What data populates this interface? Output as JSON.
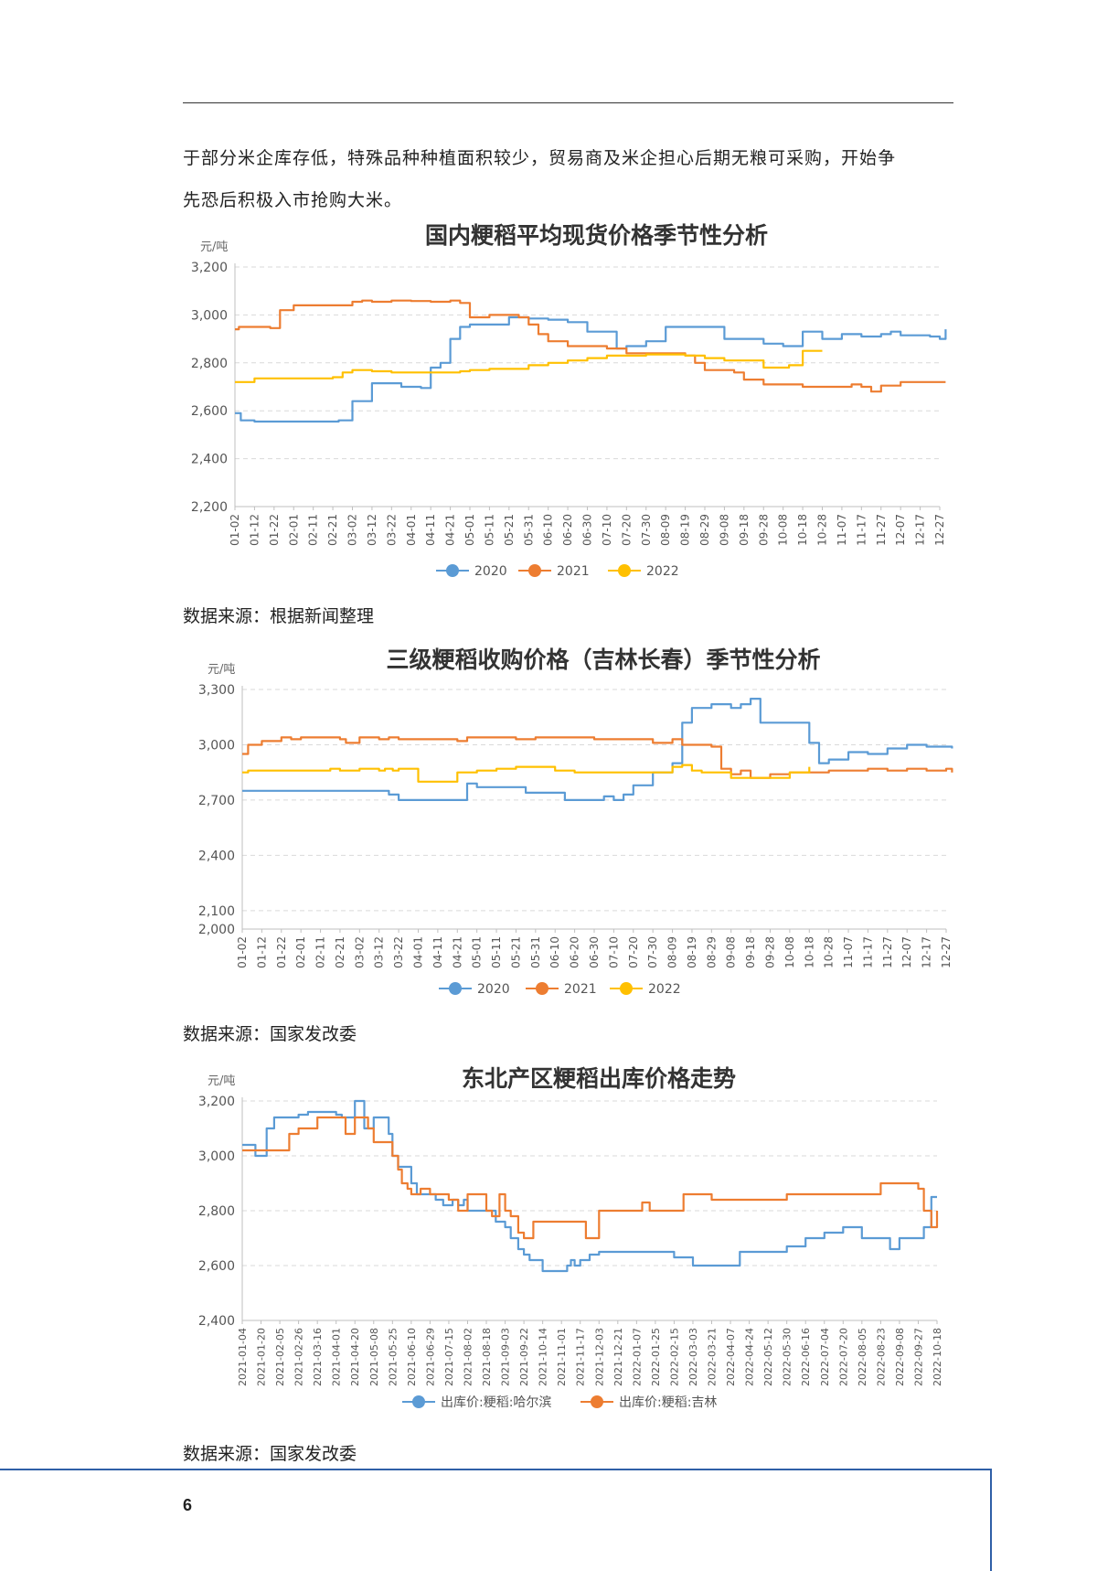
{
  "paragraph": {
    "line1": "于部分米企库存低，特殊品种种植面积较少，贸易商及米企担心后期无粮可采购，开始争",
    "line2": "先恐后积极入市抢购大米。"
  },
  "page_number": "6",
  "sources": [
    "数据来源：根据新闻整理",
    "数据来源：国家发改委",
    "数据来源：国家发改委"
  ],
  "colors": {
    "blue": "#5b9bd5",
    "orange": "#ed7d31",
    "yellow": "#ffc000"
  },
  "chart_data": [
    {
      "type": "line",
      "title": "国内粳稻平均现货价格季节性分析",
      "ylabel": "元/吨",
      "ylim": [
        2200,
        3200
      ],
      "yticks": [
        2200,
        2400,
        2600,
        2800,
        3000,
        3200
      ],
      "ytick_labels": [
        "2,200",
        "2,400",
        "2,600",
        "2,800",
        "3,000",
        "3,200"
      ],
      "x_index_range": [
        0,
        36
      ],
      "x_tick_labels": [
        "01-02",
        "01-12",
        "01-22",
        "02-01",
        "02-11",
        "02-21",
        "03-02",
        "03-12",
        "03-22",
        "04-01",
        "04-11",
        "04-21",
        "05-01",
        "05-11",
        "05-21",
        "05-31",
        "06-10",
        "06-20",
        "06-30",
        "07-10",
        "07-20",
        "07-30",
        "08-09",
        "08-19",
        "08-29",
        "09-08",
        "09-18",
        "09-28",
        "10-08",
        "10-18",
        "10-28",
        "11-07",
        "11-17",
        "11-27",
        "12-07",
        "12-17",
        "12-27"
      ],
      "legend_position": "bottom",
      "series": [
        {
          "name": "2020",
          "color": "#5b9bd5",
          "step": true,
          "x": [
            0,
            0.3,
            1,
            5,
            5.3,
            5.7,
            6,
            6.8,
            7,
            8.2,
            8.5,
            9,
            9.5,
            9.8,
            10,
            10.5,
            11,
            11.5,
            12,
            14,
            15,
            16,
            17,
            17.5,
            18,
            19.5,
            19.7,
            20,
            21,
            22,
            23,
            24,
            25,
            26,
            27,
            27.8,
            28,
            28.5,
            29,
            29.5,
            30,
            30.5,
            31,
            32,
            33,
            33.5,
            34,
            35,
            35.5,
            36,
            36.3
          ],
          "y": [
            2590,
            2560,
            2555,
            2555,
            2560,
            2560,
            2640,
            2640,
            2715,
            2715,
            2700,
            2700,
            2695,
            2695,
            2780,
            2800,
            2900,
            2950,
            2960,
            2990,
            2985,
            2980,
            2970,
            2970,
            2930,
            2860,
            2860,
            2870,
            2890,
            2950,
            2950,
            2950,
            2900,
            2900,
            2880,
            2880,
            2870,
            2870,
            2930,
            2930,
            2900,
            2900,
            2920,
            2910,
            2920,
            2930,
            2915,
            2915,
            2910,
            2900,
            2940
          ]
        },
        {
          "name": "2021",
          "color": "#ed7d31",
          "step": true,
          "x": [
            0,
            0.2,
            1,
            1.8,
            2.3,
            3,
            5,
            6,
            6.5,
            7,
            8,
            9,
            10,
            11,
            11.5,
            12,
            13,
            14,
            14.5,
            15,
            15.5,
            16,
            17,
            19,
            20,
            21,
            22,
            22.5,
            23,
            23.5,
            24,
            25,
            25.5,
            26,
            27,
            28,
            29,
            30,
            31,
            31.5,
            32,
            32.5,
            33,
            34,
            35,
            36,
            36.3
          ],
          "y": [
            2940,
            2950,
            2950,
            2945,
            3020,
            3040,
            3040,
            3055,
            3060,
            3055,
            3060,
            3058,
            3055,
            3060,
            3050,
            2990,
            3000,
            3000,
            2990,
            2960,
            2920,
            2890,
            2870,
            2860,
            2840,
            2840,
            2840,
            2840,
            2830,
            2800,
            2770,
            2770,
            2760,
            2730,
            2710,
            2710,
            2700,
            2700,
            2700,
            2710,
            2700,
            2680,
            2705,
            2720,
            2720,
            2720,
            2720
          ]
        },
        {
          "name": "2022",
          "color": "#ffc000",
          "step": true,
          "x": [
            0,
            0.5,
            1,
            5,
            5.5,
            6,
            7,
            8,
            9,
            10,
            11,
            11.5,
            12,
            13,
            14,
            15,
            16,
            17,
            18,
            19,
            20,
            21,
            22,
            23,
            24,
            25,
            26,
            27,
            28,
            28.3,
            29,
            30
          ],
          "y": [
            2720,
            2720,
            2735,
            2740,
            2760,
            2770,
            2765,
            2760,
            2760,
            2760,
            2760,
            2765,
            2770,
            2775,
            2775,
            2790,
            2800,
            2810,
            2820,
            2830,
            2830,
            2835,
            2835,
            2830,
            2820,
            2810,
            2810,
            2780,
            2780,
            2790,
            2850,
            2850
          ]
        }
      ]
    },
    {
      "type": "line",
      "title": "三级粳稻收购价格（吉林长春）季节性分析",
      "ylabel": "元/吨",
      "ylim": [
        2000,
        3300
      ],
      "yticks": [
        2000,
        2100,
        2400,
        2700,
        3000,
        3300
      ],
      "ytick_labels": [
        "2,000",
        "2,100",
        "2,400",
        "2,700",
        "3,000",
        "3,300"
      ],
      "x_index_range": [
        0,
        36
      ],
      "x_tick_labels": [
        "01-02",
        "01-12",
        "01-22",
        "02-01",
        "02-11",
        "02-21",
        "03-02",
        "03-12",
        "03-22",
        "04-01",
        "04-11",
        "04-21",
        "05-01",
        "05-11",
        "05-21",
        "05-31",
        "06-10",
        "06-20",
        "06-30",
        "07-10",
        "07-20",
        "07-30",
        "08-09",
        "08-19",
        "08-29",
        "09-08",
        "09-18",
        "09-28",
        "10-08",
        "10-18",
        "10-28",
        "11-07",
        "11-17",
        "11-27",
        "12-07",
        "12-17",
        "12-27"
      ],
      "legend_position": "bottom",
      "series": [
        {
          "name": "2020",
          "color": "#5b9bd5",
          "step": true,
          "x": [
            0,
            7,
            7.5,
            8,
            11,
            11.5,
            12,
            14,
            14.5,
            16,
            16.5,
            18,
            18.5,
            19,
            19.5,
            20,
            21,
            22,
            22.5,
            23,
            24,
            25,
            25.5,
            26,
            26.5,
            28,
            29,
            29.5,
            30,
            31,
            32,
            33,
            34,
            35,
            36.3
          ],
          "y": [
            2750,
            2750,
            2730,
            2700,
            2700,
            2790,
            2770,
            2770,
            2740,
            2740,
            2700,
            2700,
            2720,
            2700,
            2730,
            2780,
            2850,
            2900,
            3120,
            3200,
            3220,
            3200,
            3220,
            3250,
            3120,
            3120,
            3010,
            2900,
            2920,
            2960,
            2950,
            2980,
            3000,
            2990,
            2980
          ]
        },
        {
          "name": "2021",
          "color": "#ed7d31",
          "step": true,
          "x": [
            0,
            0.3,
            1,
            2,
            2.5,
            3,
            4,
            5,
            5.3,
            6,
            7,
            7.5,
            8,
            11,
            11.5,
            14,
            15,
            18,
            21,
            22,
            22.5,
            24,
            24.5,
            25,
            25.5,
            26,
            26.5,
            27,
            28,
            29,
            30,
            31,
            32,
            33,
            34,
            35,
            36,
            36.3
          ],
          "y": [
            2950,
            3000,
            3020,
            3040,
            3030,
            3040,
            3040,
            3030,
            3010,
            3040,
            3030,
            3040,
            3030,
            3020,
            3040,
            3030,
            3040,
            3030,
            3010,
            3030,
            3000,
            2990,
            2870,
            2840,
            2860,
            2820,
            2820,
            2840,
            2850,
            2850,
            2860,
            2860,
            2870,
            2860,
            2870,
            2860,
            2870,
            2850
          ]
        },
        {
          "name": "2022",
          "color": "#ffc000",
          "step": true,
          "x": [
            0,
            0.3,
            3,
            4,
            4.5,
            5,
            6,
            7,
            7.3,
            7.7,
            8,
            9,
            10,
            11,
            12,
            13,
            14,
            15,
            16,
            17,
            18,
            19,
            20,
            21,
            22,
            22.5,
            23,
            23.5,
            24,
            25,
            26,
            27,
            28,
            29
          ],
          "y": [
            2850,
            2860,
            2860,
            2860,
            2870,
            2860,
            2870,
            2860,
            2870,
            2860,
            2870,
            2800,
            2800,
            2850,
            2860,
            2870,
            2880,
            2880,
            2860,
            2850,
            2850,
            2850,
            2850,
            2850,
            2880,
            2890,
            2860,
            2850,
            2850,
            2820,
            2820,
            2820,
            2850,
            2880
          ]
        }
      ]
    },
    {
      "type": "line",
      "title": "东北产区粳稻出库价格走势",
      "ylabel": "元/吨",
      "ylim": [
        2400,
        3200
      ],
      "yticks": [
        2400,
        2600,
        2800,
        3000,
        3200
      ],
      "ytick_labels": [
        "2,400",
        "2,600",
        "2,800",
        "3,000",
        "3,200"
      ],
      "x_index_range": [
        0,
        37
      ],
      "x_tick_labels": [
        "2021-01-04",
        "2021-01-20",
        "2021-02-05",
        "2021-02-26",
        "2021-03-16",
        "2021-04-01",
        "2021-04-20",
        "2021-05-08",
        "2021-05-25",
        "2021-06-10",
        "2021-06-29",
        "2021-07-15",
        "2021-08-02",
        "2021-08-18",
        "2021-09-03",
        "2021-09-22",
        "2021-10-14",
        "2021-11-01",
        "2021-11-17",
        "2021-12-03",
        "2021-12-21",
        "2022-01-07",
        "2022-01-25",
        "2022-02-15",
        "2022-03-03",
        "2022-03-21",
        "2022-04-07",
        "2022-04-24",
        "2022-05-12",
        "2022-05-30",
        "2022-06-16",
        "2022-07-04",
        "2022-07-20",
        "2022-08-05",
        "2022-08-23",
        "2022-09-08",
        "2022-09-27",
        "2022-10-18"
      ],
      "legend_position": "bottom",
      "series": [
        {
          "name": "出库价:粳稻:哈尔滨",
          "color": "#5b9bd5",
          "step": true,
          "x": [
            0,
            0.3,
            0.7,
            1,
            1.3,
            1.7,
            3,
            3.5,
            4,
            5,
            5.3,
            5.7,
            6,
            6.3,
            6.5,
            7,
            7.5,
            7.8,
            8,
            8.3,
            9,
            9.3,
            10,
            10.3,
            10.7,
            11,
            11.2,
            11.5,
            11.8,
            12,
            12.3,
            13,
            13.5,
            14,
            14.3,
            14.7,
            15,
            15.3,
            15.7,
            16,
            17,
            17.3,
            17.5,
            17.7,
            18,
            18.5,
            19,
            20,
            20.5,
            21,
            22,
            23,
            24,
            25,
            26,
            26.5,
            27,
            28,
            29,
            30,
            31,
            32,
            33,
            34,
            34.5,
            35,
            36,
            36.3,
            36.7,
            37
          ],
          "y": [
            3040,
            3040,
            3000,
            3000,
            3100,
            3140,
            3150,
            3160,
            3160,
            3150,
            3140,
            3140,
            3200,
            3200,
            3100,
            3140,
            3140,
            3080,
            3000,
            2960,
            2900,
            2860,
            2860,
            2840,
            2820,
            2820,
            2840,
            2820,
            2840,
            2800,
            2800,
            2800,
            2760,
            2740,
            2700,
            2660,
            2640,
            2620,
            2620,
            2580,
            2580,
            2600,
            2620,
            2600,
            2620,
            2640,
            2650,
            2650,
            2650,
            2650,
            2650,
            2630,
            2600,
            2600,
            2600,
            2650,
            2650,
            2650,
            2670,
            2700,
            2720,
            2740,
            2700,
            2700,
            2660,
            2700,
            2700,
            2740,
            2850,
            2850
          ]
        },
        {
          "name": "出库价:粳稻:吉林",
          "color": "#ed7d31",
          "step": true,
          "x": [
            0,
            1,
            2,
            2.5,
            3,
            4,
            5,
            5.5,
            6,
            6.3,
            6.7,
            7,
            7.5,
            8,
            8.3,
            8.5,
            8.8,
            9,
            9.5,
            10,
            11,
            11.5,
            12,
            12.5,
            13,
            13.3,
            13.7,
            14,
            14.3,
            14.7,
            15,
            15.5,
            16,
            17,
            18,
            18.3,
            18.7,
            19,
            20,
            21,
            21.3,
            21.7,
            22,
            23,
            23.5,
            24,
            25,
            26,
            27,
            28,
            29,
            30,
            31,
            32,
            33,
            34,
            35,
            35.5,
            36,
            36.3,
            36.7,
            37
          ],
          "y": [
            3020,
            3020,
            3020,
            3080,
            3100,
            3140,
            3140,
            3080,
            3140,
            3140,
            3100,
            3050,
            3050,
            3000,
            2950,
            2900,
            2880,
            2860,
            2880,
            2860,
            2840,
            2800,
            2860,
            2860,
            2800,
            2780,
            2860,
            2800,
            2780,
            2720,
            2700,
            2760,
            2760,
            2760,
            2760,
            2700,
            2700,
            2800,
            2800,
            2800,
            2830,
            2800,
            2800,
            2800,
            2860,
            2860,
            2840,
            2840,
            2840,
            2840,
            2860,
            2860,
            2860,
            2860,
            2860,
            2900,
            2900,
            2900,
            2880,
            2800,
            2740,
            2800
          ]
        }
      ]
    }
  ]
}
